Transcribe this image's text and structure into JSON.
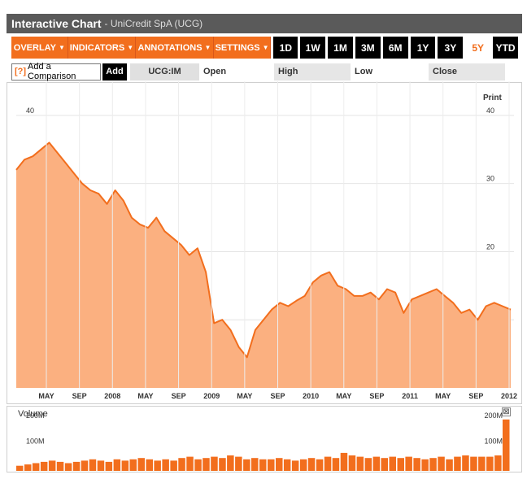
{
  "header": {
    "title": "Interactive Chart",
    "subtitle": "- UniCredit SpA (UCG)"
  },
  "toolbar": {
    "menus": [
      {
        "label": "OVERLAY",
        "caret": "▼"
      },
      {
        "label": "INDICATORS",
        "caret": "▼"
      },
      {
        "label": "ANNOTATIONS",
        "caret": "▼"
      },
      {
        "label": "SETTINGS",
        "caret": "▼"
      }
    ],
    "ranges": [
      "1D",
      "1W",
      "1M",
      "3M",
      "6M",
      "1Y",
      "3Y",
      "5Y",
      "YTD"
    ],
    "active_range": "5Y"
  },
  "compare": {
    "help_icon": "[?]",
    "label": "Add a Comparison",
    "add_label": "Add",
    "symbol": "UCG:IM",
    "open_label": "Open",
    "high_label": "High",
    "low_label": "Low",
    "close_label": "Close"
  },
  "print_label": "Print",
  "volume_label": "Volume",
  "volume_close_icon": "⊠",
  "colors": {
    "accent": "#f26e1d",
    "area_fill": "#fbb080",
    "line": "#f26e1d"
  },
  "chart_data": [
    {
      "type": "area",
      "title": "",
      "ylim": [
        0,
        45
      ],
      "y_ticks": [
        10,
        20,
        30,
        40
      ],
      "x_ticks": [
        "MAY",
        "SEP",
        "2008",
        "MAY",
        "SEP",
        "2009",
        "MAY",
        "SEP",
        "2010",
        "MAY",
        "SEP",
        "2011",
        "MAY",
        "SEP",
        "2012"
      ],
      "x_start": "2007-01",
      "x_end": "2012-01",
      "series": [
        {
          "x": [
            "2007-01",
            "2007-02",
            "2007-03",
            "2007-04",
            "2007-05",
            "2007-06",
            "2007-07",
            "2007-08",
            "2007-09",
            "2007-10",
            "2007-11",
            "2007-12",
            "2008-01",
            "2008-02",
            "2008-03",
            "2008-04",
            "2008-05",
            "2008-06",
            "2008-07",
            "2008-08",
            "2008-09",
            "2008-10",
            "2008-11",
            "2008-12",
            "2009-01",
            "2009-02",
            "2009-03",
            "2009-04",
            "2009-05",
            "2009-06",
            "2009-07",
            "2009-08",
            "2009-09",
            "2009-10",
            "2009-11",
            "2009-12",
            "2010-01",
            "2010-02",
            "2010-03",
            "2010-04",
            "2010-05",
            "2010-06",
            "2010-07",
            "2010-08",
            "2010-09",
            "2010-10",
            "2010-11",
            "2010-12",
            "2011-01",
            "2011-02",
            "2011-03",
            "2011-04",
            "2011-05",
            "2011-06",
            "2011-07",
            "2011-08",
            "2011-09",
            "2011-10",
            "2011-11",
            "2011-12",
            "2012-01"
          ],
          "y": [
            32,
            33.5,
            34,
            35,
            36,
            34.5,
            33,
            31.5,
            30,
            29,
            28.5,
            27,
            29,
            27.5,
            25,
            24,
            23.5,
            25,
            23,
            22,
            21,
            19.5,
            20.5,
            17,
            9.5,
            10,
            8.5,
            6,
            4.5,
            8.5,
            10,
            11.5,
            12.5,
            12,
            12.8,
            13.5,
            15.5,
            16.5,
            17,
            15,
            14.5,
            13.5,
            13.5,
            14,
            13,
            14.5,
            14,
            11,
            13,
            13.5,
            14,
            14.5,
            13.5,
            12.5,
            11,
            11.5,
            10,
            12,
            12.5,
            12,
            11.5
          ]
        }
      ]
    },
    {
      "type": "bar",
      "title": "Volume",
      "ylim": [
        0,
        250
      ],
      "y_ticks": [
        "100M",
        "200M"
      ],
      "values_millions": [
        20,
        25,
        30,
        35,
        40,
        35,
        30,
        35,
        40,
        45,
        40,
        35,
        45,
        40,
        45,
        50,
        45,
        40,
        45,
        40,
        50,
        55,
        45,
        50,
        55,
        50,
        60,
        55,
        45,
        50,
        45,
        45,
        50,
        45,
        40,
        45,
        50,
        45,
        55,
        50,
        70,
        60,
        55,
        50,
        55,
        50,
        55,
        50,
        55,
        50,
        45,
        50,
        55,
        45,
        55,
        60,
        55,
        55,
        55,
        60,
        200
      ]
    }
  ]
}
